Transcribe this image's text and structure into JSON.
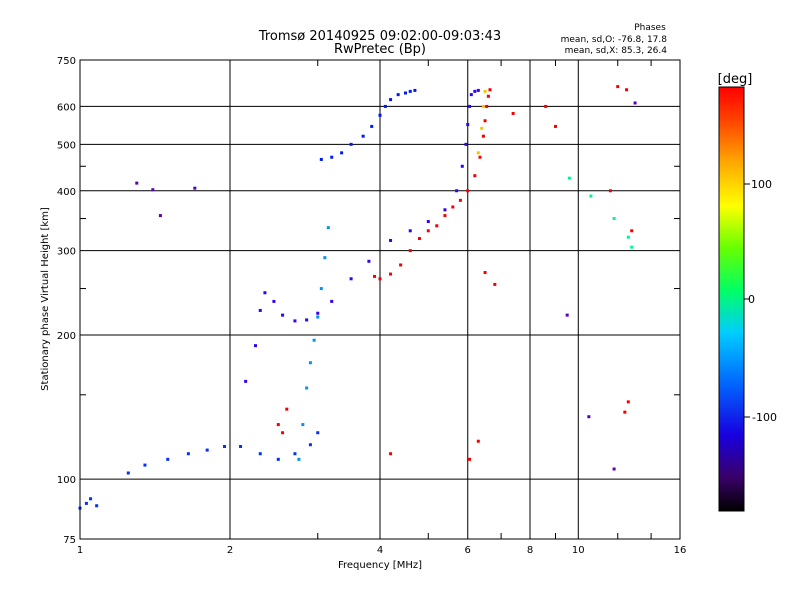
{
  "chart_data": {
    "type": "scatter",
    "title": "Tromsø 20140925 09:02:00-09:03:43",
    "subtitle": "RwPretec (Bp)",
    "xlabel": "Frequency [MHz]",
    "ylabel": "Stationary phase Virtual Height [km]",
    "x_scale": "log",
    "y_scale": "log",
    "xlim": [
      1,
      16
    ],
    "ylim": [
      75,
      750
    ],
    "x_ticks": [
      "1",
      "2",
      "4",
      "6",
      "8",
      "10",
      "16"
    ],
    "y_ticks": [
      "75",
      "100",
      "200",
      "300",
      "400",
      "500",
      "600",
      "750"
    ],
    "grid": true,
    "phases": {
      "heading": "Phases",
      "line_o": "mean, sd,O: -76.8, 17.8",
      "line_x": "mean, sd,X: 85.3, 26.4"
    },
    "colorbar": {
      "unit": "[deg]",
      "ticks": [
        "100",
        "0",
        "-100"
      ],
      "range": [
        -180,
        180
      ]
    },
    "series": [
      {
        "phase": -95,
        "points": [
          [
            3.05,
            465
          ],
          [
            3.2,
            470
          ],
          [
            3.35,
            480
          ],
          [
            3.5,
            500
          ],
          [
            3.7,
            520
          ],
          [
            3.85,
            545
          ],
          [
            4.0,
            575
          ],
          [
            4.1,
            600
          ],
          [
            4.2,
            620
          ],
          [
            4.35,
            635
          ],
          [
            4.5,
            640
          ],
          [
            4.6,
            645
          ],
          [
            4.7,
            648
          ]
        ]
      },
      {
        "phase": -110,
        "points": [
          [
            2.15,
            160
          ],
          [
            2.25,
            190
          ],
          [
            2.3,
            225
          ],
          [
            2.35,
            245
          ],
          [
            2.45,
            235
          ],
          [
            2.55,
            220
          ],
          [
            2.7,
            214
          ],
          [
            2.85,
            215
          ],
          [
            3.0,
            222
          ],
          [
            3.2,
            235
          ],
          [
            3.5,
            262
          ],
          [
            3.8,
            285
          ],
          [
            4.2,
            315
          ],
          [
            4.6,
            330
          ],
          [
            5.0,
            345
          ],
          [
            5.4,
            365
          ],
          [
            5.7,
            400
          ],
          [
            5.85,
            450
          ],
          [
            5.95,
            500
          ],
          [
            6.0,
            550
          ],
          [
            6.05,
            600
          ],
          [
            6.1,
            635
          ],
          [
            6.2,
            645
          ],
          [
            6.3,
            648
          ]
        ]
      },
      {
        "phase": -70,
        "points": [
          [
            2.75,
            110
          ],
          [
            2.8,
            130
          ],
          [
            2.85,
            155
          ],
          [
            2.9,
            175
          ],
          [
            2.95,
            195
          ],
          [
            3.0,
            218
          ],
          [
            3.05,
            250
          ],
          [
            3.1,
            290
          ],
          [
            3.15,
            335
          ]
        ]
      },
      {
        "phase": -90,
        "points": [
          [
            1.25,
            103
          ],
          [
            1.35,
            107
          ],
          [
            1.5,
            110
          ],
          [
            1.65,
            113
          ],
          [
            1.8,
            115
          ],
          [
            1.95,
            117
          ],
          [
            2.1,
            117
          ],
          [
            2.3,
            113
          ],
          [
            2.5,
            110
          ],
          [
            2.7,
            113
          ],
          [
            2.9,
            118
          ],
          [
            3.0,
            125
          ]
        ]
      },
      {
        "phase": -90,
        "points": [
          [
            1.0,
            87
          ],
          [
            1.03,
            89
          ],
          [
            1.05,
            91
          ],
          [
            1.08,
            88
          ]
        ]
      },
      {
        "phase": 150,
        "points": [
          [
            3.9,
            265
          ],
          [
            4.0,
            262
          ],
          [
            4.2,
            268
          ],
          [
            4.4,
            280
          ],
          [
            4.6,
            300
          ],
          [
            4.8,
            318
          ],
          [
            5.0,
            330
          ],
          [
            5.2,
            338
          ]
        ]
      },
      {
        "phase": 100,
        "points": [
          [
            5.4,
            355
          ],
          [
            5.6,
            370
          ],
          [
            5.8,
            382
          ],
          [
            6.0,
            400
          ],
          [
            6.2,
            430
          ],
          [
            6.35,
            470
          ],
          [
            6.45,
            520
          ],
          [
            6.5,
            560
          ],
          [
            6.55,
            600
          ],
          [
            6.6,
            630
          ],
          [
            6.65,
            650
          ]
        ]
      },
      {
        "phase": 60,
        "points": [
          [
            6.3,
            480
          ],
          [
            6.4,
            540
          ],
          [
            6.45,
            600
          ],
          [
            6.5,
            645
          ]
        ]
      },
      {
        "phase": -30,
        "points": [
          [
            9.6,
            425
          ],
          [
            10.6,
            390
          ],
          [
            11.8,
            350
          ],
          [
            12.6,
            320
          ],
          [
            12.8,
            305
          ]
        ]
      },
      {
        "phase": 110,
        "points": [
          [
            7.4,
            580
          ],
          [
            8.6,
            600
          ],
          [
            9.0,
            545
          ],
          [
            12.0,
            660
          ],
          [
            12.5,
            650
          ],
          [
            11.6,
            400
          ],
          [
            12.8,
            330
          ]
        ]
      },
      {
        "phase": 165,
        "points": [
          [
            2.5,
            130
          ],
          [
            2.55,
            125
          ],
          [
            2.6,
            140
          ],
          [
            6.05,
            110
          ],
          [
            6.3,
            120
          ],
          [
            4.2,
            113
          ],
          [
            12.4,
            138
          ],
          [
            12.6,
            145
          ],
          [
            6.5,
            270
          ],
          [
            6.8,
            255
          ]
        ]
      },
      {
        "phase": -130,
        "points": [
          [
            1.3,
            415
          ],
          [
            1.4,
            402
          ],
          [
            1.45,
            355
          ],
          [
            1.7,
            405
          ],
          [
            9.5,
            220
          ],
          [
            11.8,
            105
          ],
          [
            10.5,
            135
          ],
          [
            13.0,
            610
          ]
        ]
      }
    ]
  }
}
